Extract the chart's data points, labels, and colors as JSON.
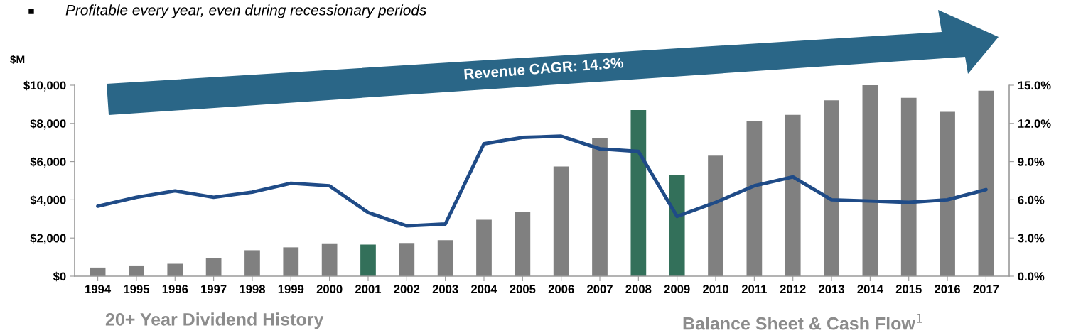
{
  "chart_data": {
    "type": "bar",
    "title": "Profitable every year, even during recessionary periods",
    "ylabel": "$M",
    "categories": [
      "1994",
      "1995",
      "1996",
      "1997",
      "1998",
      "1999",
      "2000",
      "2001",
      "2002",
      "2003",
      "2004",
      "2005",
      "2006",
      "2007",
      "2008",
      "2009",
      "2010",
      "2011",
      "2012",
      "2013",
      "2014",
      "2015",
      "2016",
      "2017"
    ],
    "series": [
      {
        "colors": [
          "#808080",
          "#808080",
          "#808080",
          "#808080",
          "#808080",
          "#808080",
          "#808080",
          "#33705a",
          "#808080",
          "#808080",
          "#808080",
          "#808080",
          "#808080",
          "#808080",
          "#33705a",
          "#33705a",
          "#808080",
          "#808080",
          "#808080",
          "#808080",
          "#808080",
          "#808080",
          "#808080",
          "#808080"
        ],
        "values": [
          450,
          560,
          650,
          960,
          1360,
          1510,
          1720,
          1650,
          1740,
          1890,
          2960,
          3380,
          5740,
          7240,
          8700,
          5320,
          6310,
          8140,
          8450,
          9210,
          10000,
          9340,
          8610,
          9710
        ]
      },
      {
        "type": "line",
        "axis": "y2",
        "color": "#1f4b87",
        "values": [
          5.5,
          6.2,
          6.7,
          6.2,
          6.6,
          7.3,
          7.1,
          5.0,
          3.95,
          4.1,
          10.4,
          10.9,
          11.0,
          10.0,
          9.8,
          4.7,
          5.8,
          7.1,
          7.8,
          6.0,
          5.9,
          5.8,
          6.0,
          6.8
        ]
      }
    ],
    "ylim": [
      0,
      10000
    ],
    "yticks": [
      {
        "value": 0,
        "label": "$0"
      },
      {
        "value": 2000,
        "label": "$2,000"
      },
      {
        "value": 4000,
        "label": "$4,000"
      },
      {
        "value": 6000,
        "label": "$6,000"
      },
      {
        "value": 8000,
        "label": "$8,000"
      },
      {
        "value": 10000,
        "label": "$10,000"
      }
    ],
    "y2lim": [
      0,
      15
    ],
    "y2ticks": [
      {
        "value": 0,
        "label": "0.0%"
      },
      {
        "value": 3,
        "label": "3.0%"
      },
      {
        "value": 6,
        "label": "6.0%"
      },
      {
        "value": 9,
        "label": "9.0%"
      },
      {
        "value": 12,
        "label": "12.0%"
      },
      {
        "value": 15,
        "label": "15.0%"
      }
    ],
    "grid": false,
    "legend": false,
    "annotations": [
      "Revenue CAGR: 14.3%",
      "20+ Year Dividend History",
      "Balance Sheet & Cash Flow$^{1}$"
    ]
  }
}
